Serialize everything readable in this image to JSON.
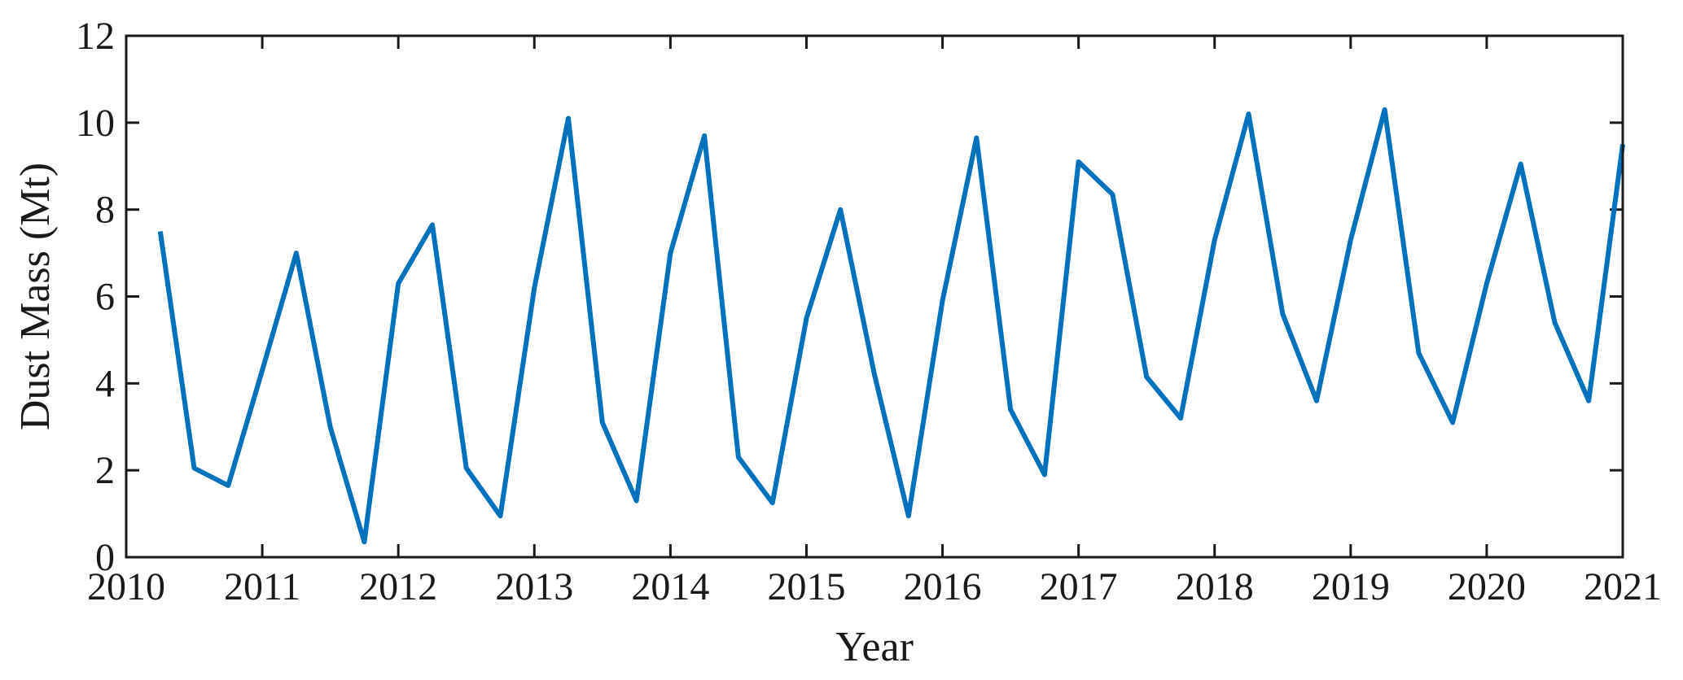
{
  "chart_data": {
    "type": "line",
    "title": "",
    "xlabel": "Year",
    "ylabel": "Dust Mass (Mt)",
    "xlim": [
      2010,
      2021
    ],
    "ylim": [
      0,
      12
    ],
    "xticks": [
      2010,
      2011,
      2012,
      2013,
      2014,
      2015,
      2016,
      2017,
      2018,
      2019,
      2020,
      2021
    ],
    "yticks": [
      0,
      2,
      4,
      6,
      8,
      10,
      12
    ],
    "grid": false,
    "legend": "none",
    "colors": {
      "line": "#0072BD",
      "axes": "#1a1a1a"
    },
    "series": [
      {
        "x": [
          2010.25,
          2010.5,
          2010.75,
          2011.0,
          2011.25,
          2011.5,
          2011.75,
          2012.0,
          2012.25,
          2012.5,
          2012.75,
          2013.0,
          2013.25,
          2013.5,
          2013.75,
          2014.0,
          2014.25,
          2014.5,
          2014.75,
          2015.0,
          2015.25,
          2015.5,
          2015.75,
          2016.0,
          2016.25,
          2016.5,
          2016.75,
          2017.0,
          2017.25,
          2017.5,
          2017.75,
          2018.0,
          2018.25,
          2018.5,
          2018.75,
          2019.0,
          2019.25,
          2019.5,
          2019.75,
          2020.0,
          2020.25,
          2020.5,
          2020.75,
          2021.0
        ],
        "y": [
          7.5,
          2.05,
          1.65,
          4.3,
          7.0,
          3.0,
          0.35,
          6.3,
          7.65,
          2.05,
          0.95,
          6.2,
          10.1,
          3.1,
          1.3,
          7.0,
          9.7,
          2.3,
          1.25,
          5.5,
          8.0,
          4.2,
          0.95,
          5.9,
          9.65,
          3.4,
          1.9,
          9.1,
          8.35,
          4.15,
          3.2,
          7.3,
          10.2,
          5.6,
          3.6,
          7.3,
          10.3,
          4.7,
          3.1,
          6.3,
          9.05,
          5.4,
          3.6,
          9.5
        ]
      }
    ]
  }
}
